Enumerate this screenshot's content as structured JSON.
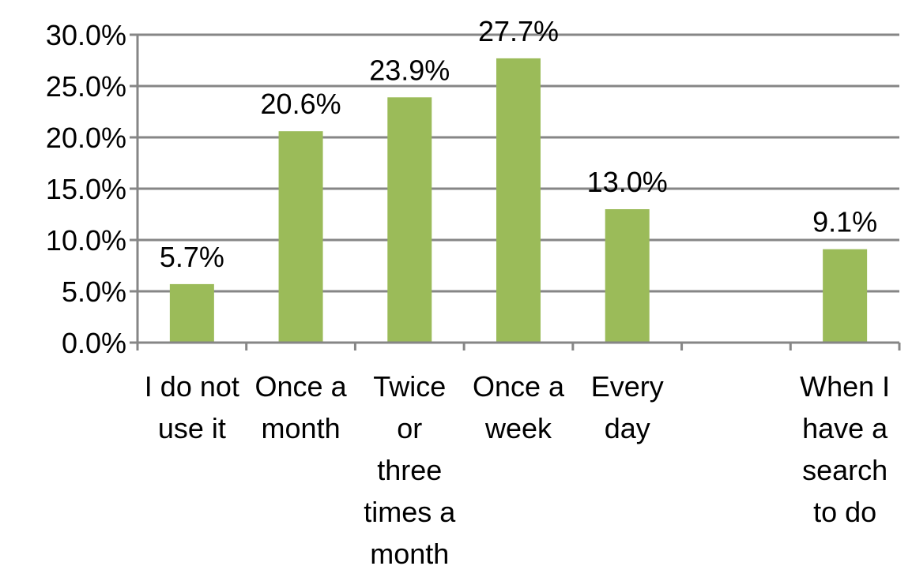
{
  "chart_data": {
    "type": "bar",
    "categories": [
      [
        "I do not",
        "use it"
      ],
      [
        "Once a",
        "month"
      ],
      [
        "Twice",
        "or",
        "three",
        "times a",
        "month"
      ],
      [
        "Once a",
        "week"
      ],
      [
        "Every",
        "day"
      ],
      [],
      [
        "When I",
        "have a",
        "search",
        "to do"
      ]
    ],
    "values": [
      5.7,
      20.6,
      23.9,
      27.7,
      13.0,
      null,
      9.1
    ],
    "data_labels": [
      "5.7%",
      "20.6%",
      "23.9%",
      "27.7%",
      "13.0%",
      "",
      "9.1%"
    ],
    "y_ticks": [
      "0.0%",
      "5.0%",
      "10.0%",
      "15.0%",
      "20.0%",
      "25.0%",
      "30.0%"
    ],
    "ylim": [
      0,
      30
    ],
    "title": "",
    "xlabel": "",
    "ylabel": "",
    "grid": true,
    "legend": "none",
    "bar_color": "#9BBB59",
    "grid_color": "#868686"
  }
}
